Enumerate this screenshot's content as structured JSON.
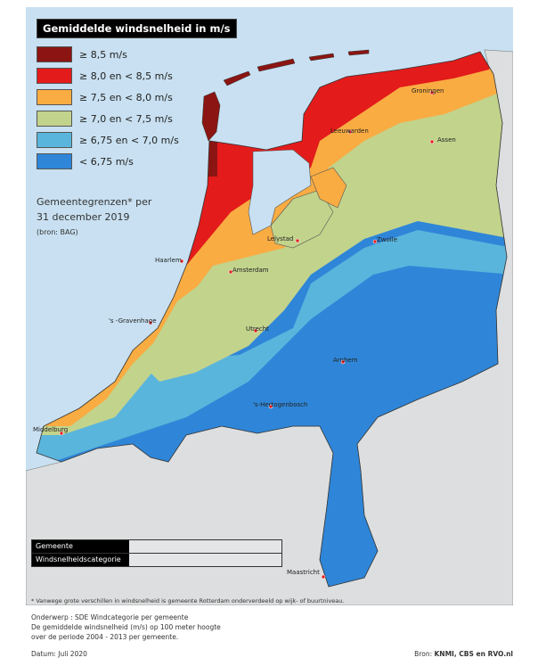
{
  "legend": {
    "title": "Gemiddelde windsnelheid in m/s",
    "items": [
      {
        "label": "≥ 8,5 m/s",
        "color": "#8b1512"
      },
      {
        "label": "≥ 8,0 en < 8,5 m/s",
        "color": "#e31b1b"
      },
      {
        "label": "≥ 7,5 en < 8,0 m/s",
        "color": "#f9ac42"
      },
      {
        "label": "≥ 7,0 en < 7,5 m/s",
        "color": "#c2d38c"
      },
      {
        "label": "≥ 6,75 en < 7,0 m/s",
        "color": "#5ab5dc"
      },
      {
        "label": "< 6,75 m/s",
        "color": "#2f86d8"
      }
    ]
  },
  "boundaries_note": {
    "line1": "Gemeentegrenzen* per",
    "line2": "31 december 2019",
    "source": "(bron: BAG)"
  },
  "cities": [
    {
      "name": "Groningen"
    },
    {
      "name": "Leeuwarden"
    },
    {
      "name": "Assen"
    },
    {
      "name": "Lelystad"
    },
    {
      "name": "Zwolle"
    },
    {
      "name": "Haarlem"
    },
    {
      "name": "Amsterdam"
    },
    {
      "name": "'s -Gravenhage"
    },
    {
      "name": "Utrecht"
    },
    {
      "name": "Arnhem"
    },
    {
      "name": "'s-Hertogenbosch"
    },
    {
      "name": "Middelburg"
    },
    {
      "name": "Maastricht"
    }
  ],
  "info_box": {
    "gemeente_label": "Gemeente",
    "gemeente_value": "",
    "category_label": "Windsnelheidscategorie",
    "category_value": ""
  },
  "footnote": "* Vanwege grote verschillen in windsnelheid is gemeente Rotterdam onderverdeeld op wijk- of buurtniveau.",
  "subject": {
    "line1": "Onderwerp : SDE Windcategorie per gemeente",
    "line2": "De gemiddelde windsnelheid (m/s) op 100 meter hoogte",
    "line3": "over de periode 2004 - 2013 per gemeente."
  },
  "date": "Datum: Juli 2020",
  "source_prefix": "Bron: ",
  "source": "KNMI, CBS en RVO.nl",
  "colors": {
    "sea": "#c8e0f1",
    "land_abroad": "#dcdedf"
  }
}
